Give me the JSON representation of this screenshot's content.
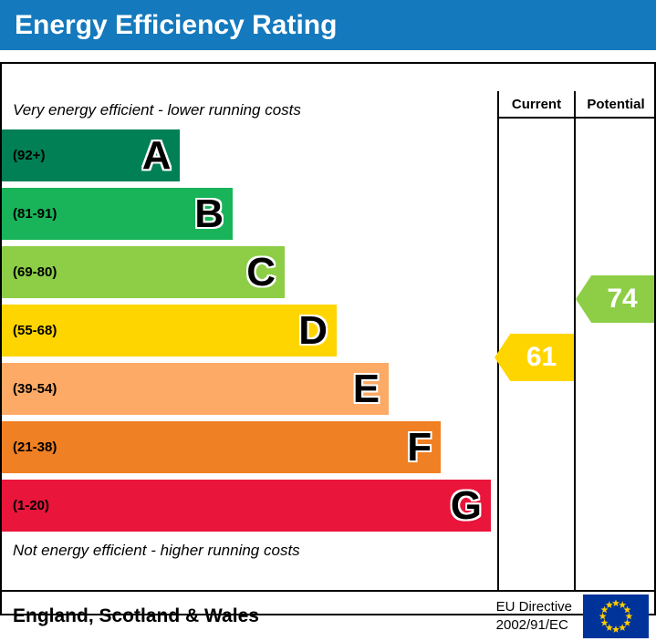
{
  "title": "Energy Efficiency Rating",
  "columns": {
    "current": "Current",
    "potential": "Potential"
  },
  "top_note": "Very energy efficient - lower running costs",
  "bottom_note": "Not energy efficient - higher running costs",
  "bands": [
    {
      "letter": "A",
      "range": "(92+)",
      "color": "#008054",
      "width_pct": 36.0
    },
    {
      "letter": "B",
      "range": "(81-91)",
      "color": "#19b459",
      "width_pct": 46.6
    },
    {
      "letter": "C",
      "range": "(69-80)",
      "color": "#8dce46",
      "width_pct": 57.1
    },
    {
      "letter": "D",
      "range": "(55-68)",
      "color": "#ffd500",
      "width_pct": 67.6
    },
    {
      "letter": "E",
      "range": "(39-54)",
      "color": "#fcaa65",
      "width_pct": 78.1
    },
    {
      "letter": "F",
      "range": "(21-38)",
      "color": "#ef8023",
      "width_pct": 88.6
    },
    {
      "letter": "G",
      "range": "(1-20)",
      "color": "#e9153b",
      "width_pct": 98.7
    }
  ],
  "current": {
    "value": "61",
    "band_index": 3,
    "color": "#ffd500"
  },
  "potential": {
    "value": "74",
    "band_index": 2,
    "color": "#8dce46"
  },
  "footer": {
    "region": "England, Scotland & Wales",
    "directive_line1": "EU Directive",
    "directive_line2": "2002/91/EC"
  },
  "chart_data": {
    "type": "bar",
    "title": "Energy Efficiency Rating",
    "categories": [
      "A",
      "B",
      "C",
      "D",
      "E",
      "F",
      "G"
    ],
    "band_ranges": [
      "(92+)",
      "(81-91)",
      "(69-80)",
      "(55-68)",
      "(39-54)",
      "(21-38)",
      "(1-20)"
    ],
    "band_colors": [
      "#008054",
      "#19b459",
      "#8dce46",
      "#ffd500",
      "#fcaa65",
      "#ef8023",
      "#e9153b"
    ],
    "bar_widths_pct": [
      36.0,
      46.6,
      57.1,
      67.6,
      78.1,
      88.6,
      98.7
    ],
    "current_rating": 61,
    "current_band": "D",
    "potential_rating": 74,
    "potential_band": "C",
    "value_columns": [
      "Current",
      "Potential"
    ],
    "annotations": [
      "Very energy efficient - lower running costs",
      "Not energy efficient - higher running costs"
    ],
    "legend_position": "none",
    "grid": false
  }
}
